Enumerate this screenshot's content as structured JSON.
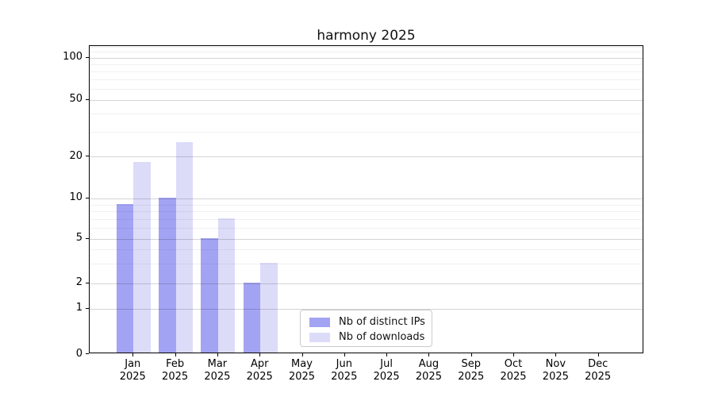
{
  "chart_data": {
    "type": "bar",
    "title": "harmony 2025",
    "categories": [
      "Jan",
      "Feb",
      "Mar",
      "Apr",
      "May",
      "Jun",
      "Jul",
      "Aug",
      "Sep",
      "Oct",
      "Nov",
      "Dec"
    ],
    "year_label": "2025",
    "series": [
      {
        "name": "Nb of distinct IPs",
        "color": "#a3a3f4",
        "values": [
          9,
          10,
          5,
          2,
          0,
          0,
          0,
          0,
          0,
          0,
          0,
          0
        ]
      },
      {
        "name": "Nb of downloads",
        "color": "#dcdcf9",
        "values": [
          18,
          25,
          7,
          3,
          0,
          0,
          0,
          0,
          0,
          0,
          0,
          0
        ]
      }
    ],
    "xlabel": "",
    "ylabel": "",
    "yscale": "symlog (linear 0-1, log above 1)",
    "yticks": [
      0,
      1,
      2,
      5,
      10,
      20,
      50,
      100
    ],
    "minor_yticks": [
      3,
      4,
      6,
      7,
      8,
      9,
      30,
      40,
      60,
      70,
      80,
      90,
      110,
      120
    ],
    "ylim": [
      0,
      121
    ],
    "grid": "on",
    "legend_position": "lower center"
  },
  "colors": {
    "background": "#ffffff",
    "spine": "#000000",
    "grid_major": "#d4d4d4",
    "grid_minor": "#ececec",
    "tick_text": "#000000",
    "legend_border": "#cbcbcb"
  }
}
